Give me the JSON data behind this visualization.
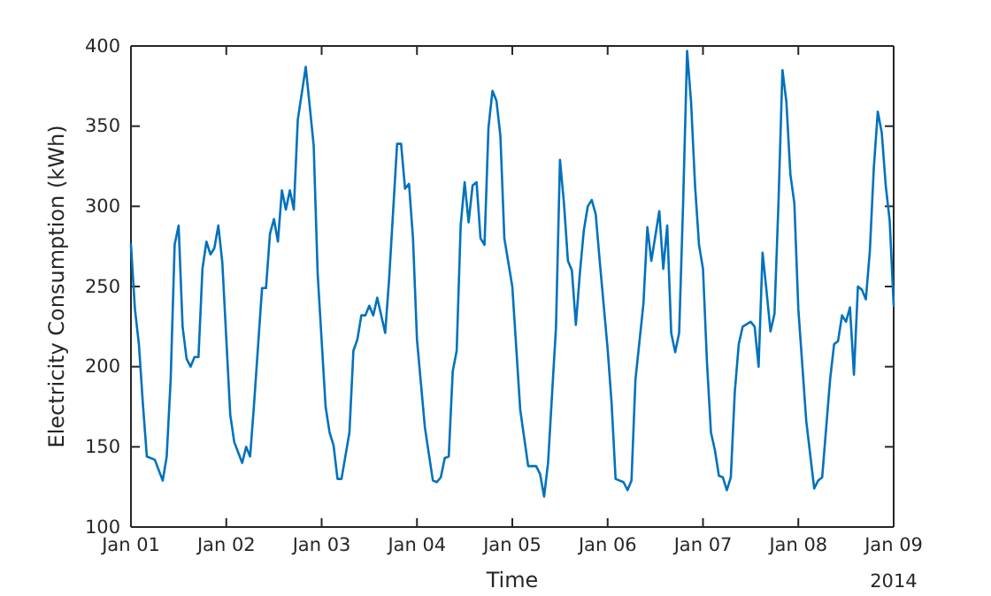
{
  "chart_data": {
    "type": "line",
    "xlabel": "Time",
    "ylabel": "Electricity Consumption (kWh)",
    "x": [
      "2014-01-01T00:00",
      "2014-01-01T01:00",
      "2014-01-01T02:00",
      "2014-01-01T03:00",
      "2014-01-01T04:00",
      "2014-01-01T06:00",
      "2014-01-01T08:00",
      "2014-01-01T09:00",
      "2014-01-01T10:00",
      "2014-01-01T11:00",
      "2014-01-01T12:00",
      "2014-01-01T13:00",
      "2014-01-01T14:00",
      "2014-01-01T15:00",
      "2014-01-01T16:00",
      "2014-01-01T17:00",
      "2014-01-01T18:00",
      "2014-01-01T19:00",
      "2014-01-01T20:00",
      "2014-01-01T21:00",
      "2014-01-01T22:00",
      "2014-01-01T23:00",
      "2014-01-02T01:00",
      "2014-01-02T02:00",
      "2014-01-02T04:00",
      "2014-01-02T05:00",
      "2014-01-02T06:00",
      "2014-01-02T07:00",
      "2014-01-02T09:00",
      "2014-01-02T10:00",
      "2014-01-02T11:00",
      "2014-01-02T12:00",
      "2014-01-02T13:00",
      "2014-01-02T14:00",
      "2014-01-02T15:00",
      "2014-01-02T16:00",
      "2014-01-02T17:00",
      "2014-01-02T18:00",
      "2014-01-02T20:00",
      "2014-01-02T22:00",
      "2014-01-02T23:00",
      "2014-01-03T01:00",
      "2014-01-03T02:00",
      "2014-01-03T03:00",
      "2014-01-03T04:00",
      "2014-01-03T05:00",
      "2014-01-03T07:00",
      "2014-01-03T08:00",
      "2014-01-03T09:00",
      "2014-01-03T10:00",
      "2014-01-03T11:00",
      "2014-01-03T12:00",
      "2014-01-03T13:00",
      "2014-01-03T14:00",
      "2014-01-03T16:00",
      "2014-01-03T17:00",
      "2014-01-03T19:00",
      "2014-01-03T20:00",
      "2014-01-03T21:00",
      "2014-01-03T22:00",
      "2014-01-03T23:00",
      "2014-01-04T00:00",
      "2014-01-04T02:00",
      "2014-01-04T04:00",
      "2014-01-04T05:00",
      "2014-01-04T06:00",
      "2014-01-04T07:00",
      "2014-01-04T08:00",
      "2014-01-04T09:00",
      "2014-01-04T10:00",
      "2014-01-04T11:00",
      "2014-01-04T12:00",
      "2014-01-04T13:00",
      "2014-01-04T14:00",
      "2014-01-04T15:00",
      "2014-01-04T16:00",
      "2014-01-04T17:00",
      "2014-01-04T18:00",
      "2014-01-04T19:00",
      "2014-01-04T20:00",
      "2014-01-04T21:00",
      "2014-01-04T22:00",
      "2014-01-05T00:00",
      "2014-01-05T02:00",
      "2014-01-05T04:00",
      "2014-01-05T06:00",
      "2014-01-05T07:00",
      "2014-01-05T08:00",
      "2014-01-05T09:00",
      "2014-01-05T11:00",
      "2014-01-05T12:00",
      "2014-01-05T13:00",
      "2014-01-05T14:00",
      "2014-01-05T15:00",
      "2014-01-05T16:00",
      "2014-01-05T17:00",
      "2014-01-05T18:00",
      "2014-01-05T19:00",
      "2014-01-05T20:00",
      "2014-01-05T21:00",
      "2014-01-05T22:00",
      "2014-01-06T00:00",
      "2014-01-06T01:00",
      "2014-01-06T02:00",
      "2014-01-06T04:00",
      "2014-01-06T05:00",
      "2014-01-06T06:00",
      "2014-01-06T07:00",
      "2014-01-06T09:00",
      "2014-01-06T10:00",
      "2014-01-06T11:00",
      "2014-01-06T13:00",
      "2014-01-06T14:00",
      "2014-01-06T15:00",
      "2014-01-06T16:00",
      "2014-01-06T17:00",
      "2014-01-06T18:00",
      "2014-01-06T19:00",
      "2014-01-06T20:00",
      "2014-01-06T21:00",
      "2014-01-06T22:00",
      "2014-01-06T23:00",
      "2014-01-07T00:00",
      "2014-01-07T01:00",
      "2014-01-07T02:00",
      "2014-01-07T03:00",
      "2014-01-07T04:00",
      "2014-01-07T05:00",
      "2014-01-07T06:00",
      "2014-01-07T07:00",
      "2014-01-07T08:00",
      "2014-01-07T09:00",
      "2014-01-07T10:00",
      "2014-01-07T12:00",
      "2014-01-07T13:00",
      "2014-01-07T14:00",
      "2014-01-07T15:00",
      "2014-01-07T16:00",
      "2014-01-07T17:00",
      "2014-01-07T18:00",
      "2014-01-07T19:00",
      "2014-01-07T20:00",
      "2014-01-07T21:00",
      "2014-01-07T22:00",
      "2014-01-07T23:00",
      "2014-01-08T00:00",
      "2014-01-08T02:00",
      "2014-01-08T04:00",
      "2014-01-08T05:00",
      "2014-01-08T06:00",
      "2014-01-08T08:00",
      "2014-01-08T09:00",
      "2014-01-08T10:00",
      "2014-01-08T11:00",
      "2014-01-08T12:00",
      "2014-01-08T13:00",
      "2014-01-08T14:00",
      "2014-01-08T15:00",
      "2014-01-08T16:00",
      "2014-01-08T17:00",
      "2014-01-08T18:00",
      "2014-01-08T19:00",
      "2014-01-08T20:00",
      "2014-01-08T21:00",
      "2014-01-08T22:00",
      "2014-01-08T23:00",
      "2014-01-09T00:00"
    ],
    "series": [
      {
        "color": "#0072bd",
        "values": [
          276,
          236,
          214,
          177,
          144,
          142,
          129,
          144,
          192,
          276,
          288,
          225,
          205,
          200,
          206,
          206,
          261,
          278,
          270,
          274,
          288,
          265,
          170,
          153,
          140,
          150,
          144,
          177,
          249,
          249,
          283,
          292,
          278,
          310,
          298,
          310,
          298,
          354,
          387,
          338,
          258,
          175,
          159,
          151,
          130,
          130,
          159,
          210,
          217,
          232,
          232,
          238,
          232,
          243,
          221,
          255,
          339,
          339,
          311,
          314,
          280,
          217,
          162,
          129,
          128,
          131,
          143,
          144,
          197,
          210,
          288,
          315,
          290,
          313,
          315,
          280,
          276,
          349,
          372,
          366,
          344,
          280,
          250,
          173,
          138,
          138,
          133,
          119,
          140,
          225,
          329,
          302,
          266,
          260,
          226,
          258,
          285,
          300,
          304,
          295,
          266,
          211,
          177,
          130,
          128,
          123,
          129,
          192,
          239,
          287,
          266,
          297,
          261,
          288,
          221,
          209,
          221,
          302,
          397,
          365,
          313,
          276,
          261,
          203,
          159,
          148,
          132,
          131,
          123,
          131,
          184,
          214,
          225,
          228,
          225,
          200,
          271,
          247,
          222,
          233,
          302,
          385,
          365,
          320,
          302,
          236,
          166,
          124,
          129,
          131,
          192,
          214,
          216,
          232,
          228,
          237,
          195,
          250,
          248,
          242,
          272,
          324,
          359,
          346,
          313,
          291,
          238
        ]
      }
    ],
    "xlim": [
      "2014-01-01",
      "2014-01-09"
    ],
    "xticks": [
      {
        "value": "2014-01-01",
        "label": "Jan 01"
      },
      {
        "value": "2014-01-02",
        "label": "Jan 02"
      },
      {
        "value": "2014-01-03",
        "label": "Jan 03"
      },
      {
        "value": "2014-01-04",
        "label": "Jan 04"
      },
      {
        "value": "2014-01-05",
        "label": "Jan 05"
      },
      {
        "value": "2014-01-06",
        "label": "Jan 06"
      },
      {
        "value": "2014-01-07",
        "label": "Jan 07"
      },
      {
        "value": "2014-01-08",
        "label": "Jan 08"
      },
      {
        "value": "2014-01-09",
        "label": "Jan 09"
      }
    ],
    "ylim": [
      100,
      400
    ],
    "yticks": [
      100,
      150,
      200,
      250,
      300,
      350,
      400
    ],
    "annotations": [
      "2014"
    ],
    "grid": false,
    "marker": "none",
    "line_style": "solid"
  }
}
